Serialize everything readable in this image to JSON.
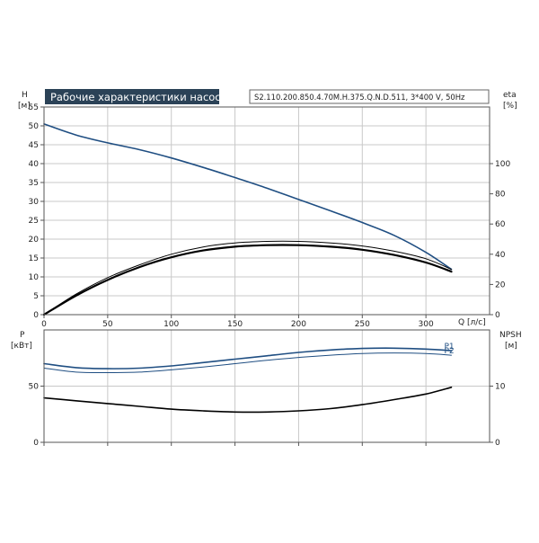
{
  "header": {
    "title": "Рабочие характеристики насоса",
    "model": "S2.110.200.850.4.70M.H.375.Q.N.D.511, 3*400 V, 50Hz",
    "title_bg": "#2b4257",
    "title_fg": "#ffffff"
  },
  "chart_data": [
    {
      "type": "line",
      "panel": "top",
      "x_unit_label": "Q [л/с]",
      "left_axis": {
        "label_top": "H",
        "label_bottom": "[м]",
        "range": [
          0,
          55
        ],
        "ticks": [
          0,
          5,
          10,
          15,
          20,
          25,
          30,
          35,
          40,
          45,
          50,
          55
        ]
      },
      "right_axis": {
        "label_top": "eta",
        "label_bottom": "[%]",
        "range": [
          0,
          137.5
        ],
        "ticks": [
          0,
          20,
          40,
          60,
          80,
          100
        ]
      },
      "x_range": [
        0,
        350
      ],
      "x_ticks": [
        0,
        50,
        100,
        150,
        200,
        250,
        300
      ],
      "grid": true,
      "series": [
        {
          "axis": "left",
          "color": "#1f4e82",
          "width": 1.6,
          "x": [
            0,
            25,
            50,
            75,
            100,
            125,
            150,
            175,
            200,
            225,
            250,
            275,
            300,
            320
          ],
          "y": [
            50.5,
            47.6,
            45.5,
            43.7,
            41.5,
            39.0,
            36.3,
            33.5,
            30.5,
            27.5,
            24.4,
            21.0,
            16.5,
            12.0
          ]
        },
        {
          "axis": "right",
          "color": "#000000",
          "width": 1.0,
          "x": [
            0,
            25,
            50,
            75,
            100,
            125,
            150,
            175,
            200,
            225,
            250,
            275,
            300,
            320
          ],
          "y": [
            0,
            13.5,
            24.5,
            33.0,
            40.0,
            44.8,
            47.5,
            48.5,
            48.5,
            47.5,
            45.5,
            42.0,
            37.0,
            30.0
          ]
        },
        {
          "axis": "right",
          "color": "#000000",
          "width": 2.2,
          "x": [
            0,
            25,
            50,
            75,
            100,
            125,
            150,
            175,
            200,
            225,
            250,
            275,
            300,
            320
          ],
          "y": [
            0,
            12.5,
            23.0,
            31.5,
            38.0,
            42.5,
            45.0,
            46.0,
            46.0,
            45.0,
            43.0,
            39.5,
            34.5,
            28.5
          ]
        }
      ]
    },
    {
      "type": "line",
      "panel": "bottom",
      "left_axis": {
        "label_top": "P",
        "label_bottom": "[кВт]",
        "range": [
          0,
          100
        ],
        "ticks": [
          0,
          50
        ]
      },
      "right_axis": {
        "label_top": "NPSH",
        "label_bottom": "[м]",
        "range": [
          0,
          20
        ],
        "ticks": [
          0,
          10
        ]
      },
      "x_range": [
        0,
        350
      ],
      "x_ticks": [
        0,
        50,
        100,
        150,
        200,
        250,
        300
      ],
      "grid": true,
      "series": [
        {
          "name": "P1",
          "axis": "left",
          "color": "#1f4e82",
          "width": 1.6,
          "x": [
            0,
            25,
            50,
            75,
            100,
            125,
            150,
            175,
            200,
            225,
            250,
            275,
            300,
            320
          ],
          "y": [
            70.0,
            66.5,
            65.5,
            66.0,
            68.0,
            71.0,
            74.0,
            77.0,
            80.0,
            82.2,
            83.5,
            83.8,
            83.0,
            81.5
          ]
        },
        {
          "name": "P2",
          "axis": "left",
          "color": "#1f4e82",
          "width": 1.0,
          "x": [
            0,
            25,
            50,
            75,
            100,
            125,
            150,
            175,
            200,
            225,
            250,
            275,
            300,
            320
          ],
          "y": [
            66.0,
            62.5,
            62.0,
            62.5,
            64.5,
            67.0,
            70.0,
            73.0,
            75.5,
            77.5,
            79.0,
            79.5,
            79.0,
            77.5
          ]
        },
        {
          "axis": "right",
          "color": "#000000",
          "width": 1.6,
          "x": [
            0,
            25,
            50,
            75,
            100,
            125,
            150,
            175,
            200,
            225,
            250,
            275,
            300,
            320
          ],
          "y": [
            7.9,
            7.4,
            6.9,
            6.4,
            5.9,
            5.6,
            5.4,
            5.4,
            5.6,
            6.0,
            6.7,
            7.6,
            8.6,
            9.8
          ]
        }
      ]
    }
  ]
}
